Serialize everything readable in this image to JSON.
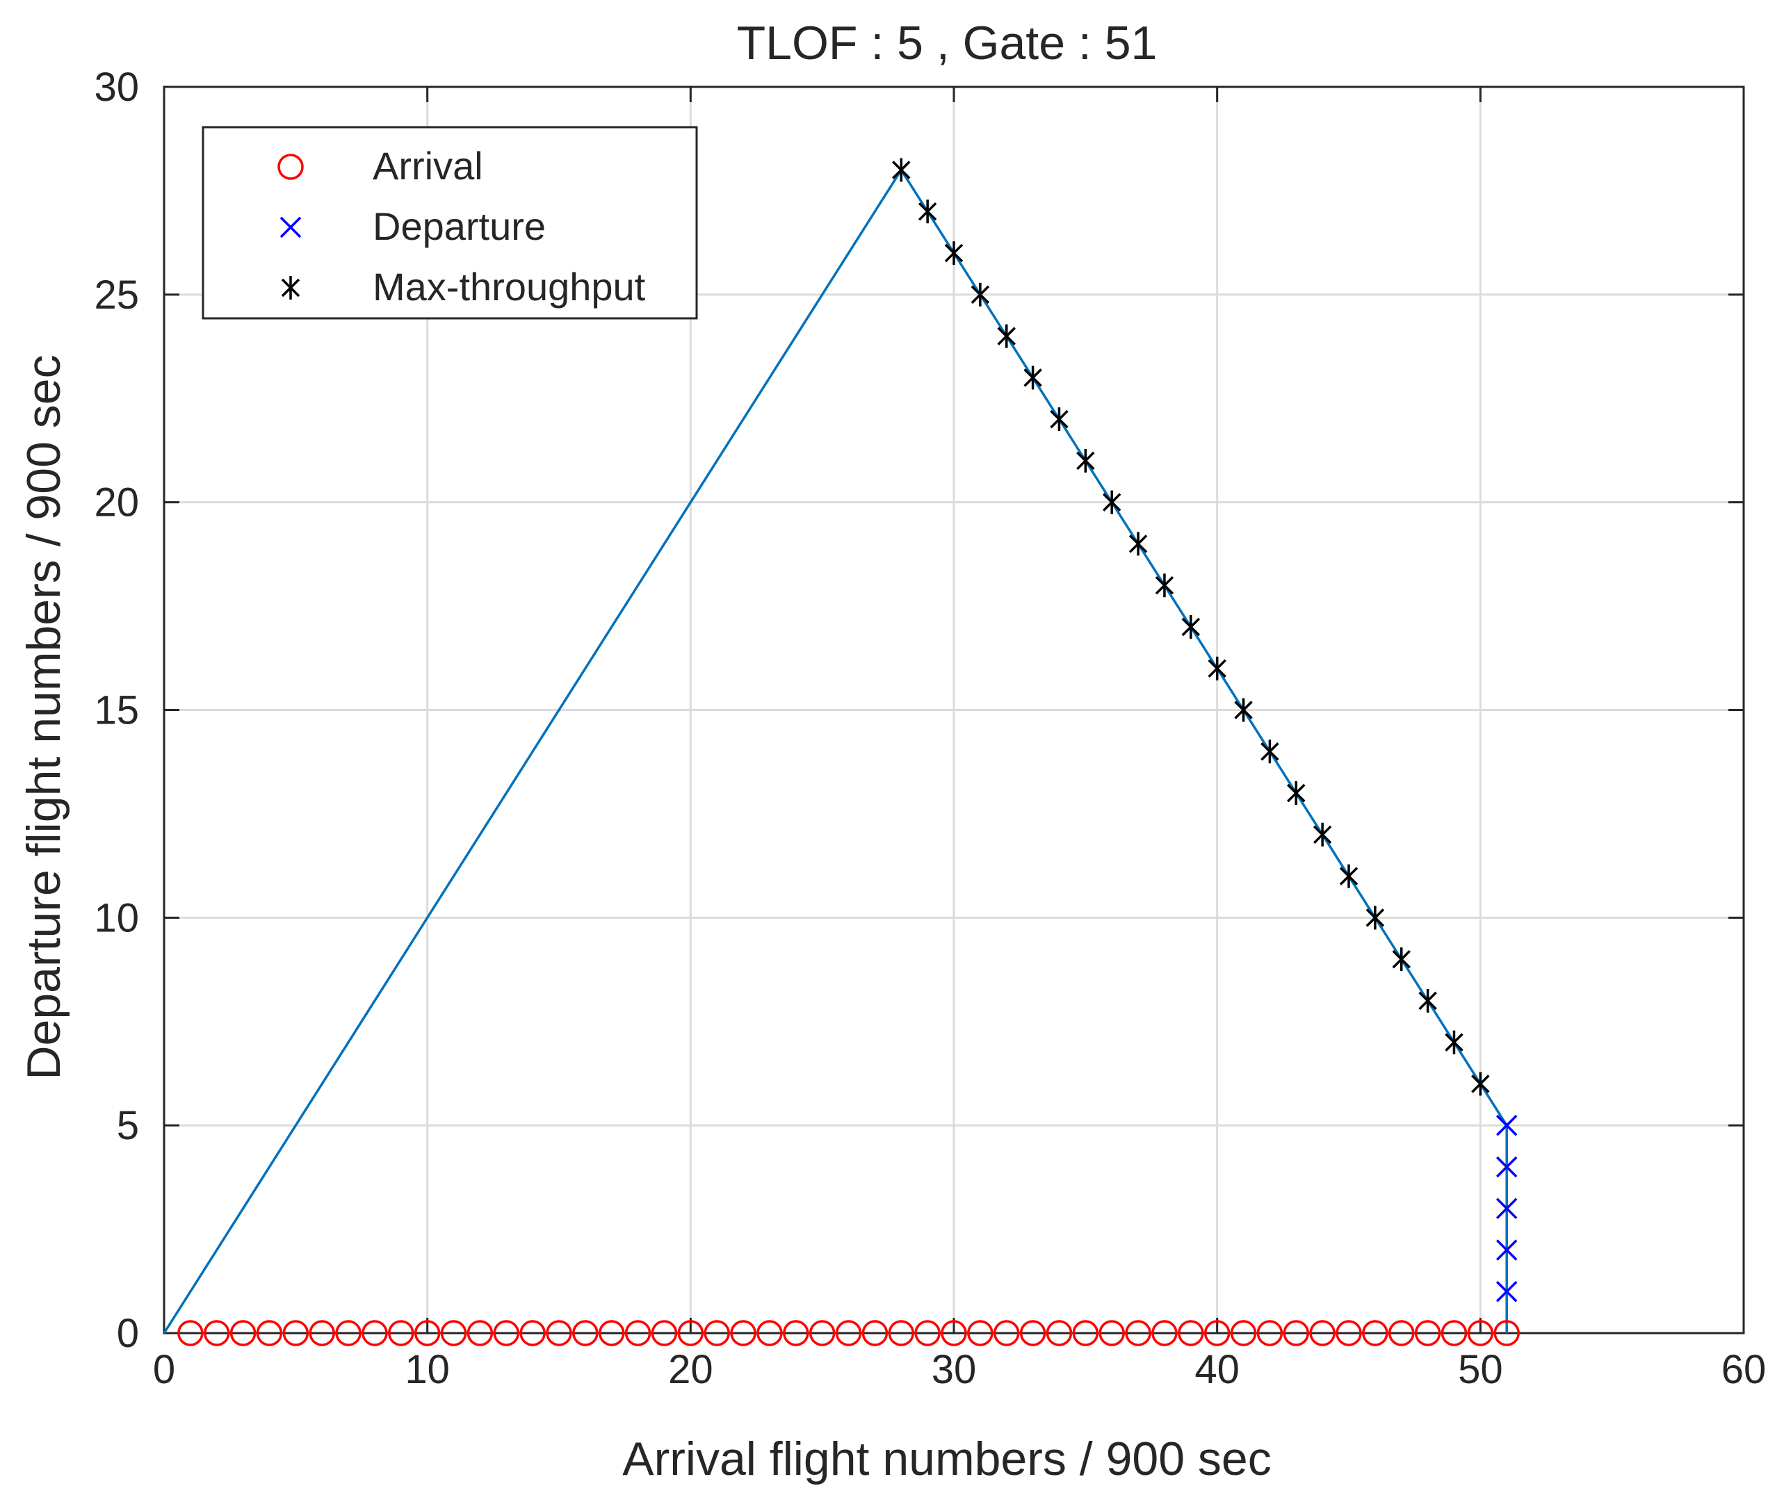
{
  "chart_data": {
    "type": "line",
    "title": "TLOF : 5 , Gate : 51",
    "xlabel": "Arrival flight numbers / 900 sec",
    "ylabel": "Departure flight numbers / 900 sec",
    "xlim": [
      0,
      60
    ],
    "ylim": [
      0,
      30
    ],
    "xticks": [
      0,
      10,
      20,
      30,
      40,
      50,
      60
    ],
    "yticks": [
      0,
      5,
      10,
      15,
      20,
      25,
      30
    ],
    "grid": true,
    "legend_position": "top-left",
    "boundary_line": {
      "color": "#0072BD",
      "x": [
        0,
        28,
        51,
        51
      ],
      "y": [
        0,
        28,
        5,
        0
      ]
    },
    "series": [
      {
        "name": "Arrival",
        "marker": "circle",
        "color": "#FF0000",
        "x": [
          1,
          2,
          3,
          4,
          5,
          6,
          7,
          8,
          9,
          10,
          11,
          12,
          13,
          14,
          15,
          16,
          17,
          18,
          19,
          20,
          21,
          22,
          23,
          24,
          25,
          26,
          27,
          28,
          29,
          30,
          31,
          32,
          33,
          34,
          35,
          36,
          37,
          38,
          39,
          40,
          41,
          42,
          43,
          44,
          45,
          46,
          47,
          48,
          49,
          50,
          51
        ],
        "y": [
          0,
          0,
          0,
          0,
          0,
          0,
          0,
          0,
          0,
          0,
          0,
          0,
          0,
          0,
          0,
          0,
          0,
          0,
          0,
          0,
          0,
          0,
          0,
          0,
          0,
          0,
          0,
          0,
          0,
          0,
          0,
          0,
          0,
          0,
          0,
          0,
          0,
          0,
          0,
          0,
          0,
          0,
          0,
          0,
          0,
          0,
          0,
          0,
          0,
          0,
          0
        ]
      },
      {
        "name": "Departure",
        "marker": "x",
        "color": "#0000FF",
        "x": [
          51,
          51,
          51,
          51,
          51
        ],
        "y": [
          1,
          2,
          3,
          4,
          5
        ]
      },
      {
        "name": "Max-throughput",
        "marker": "asterisk",
        "color": "#000000",
        "x": [
          28,
          29,
          30,
          31,
          32,
          33,
          34,
          35,
          36,
          37,
          38,
          39,
          40,
          41,
          42,
          43,
          44,
          45,
          46,
          47,
          48,
          49,
          50
        ],
        "y": [
          28,
          27,
          26,
          25,
          24,
          23,
          22,
          21,
          20,
          19,
          18,
          17,
          16,
          15,
          14,
          13,
          12,
          11,
          10,
          9,
          8,
          7,
          6
        ]
      }
    ]
  }
}
